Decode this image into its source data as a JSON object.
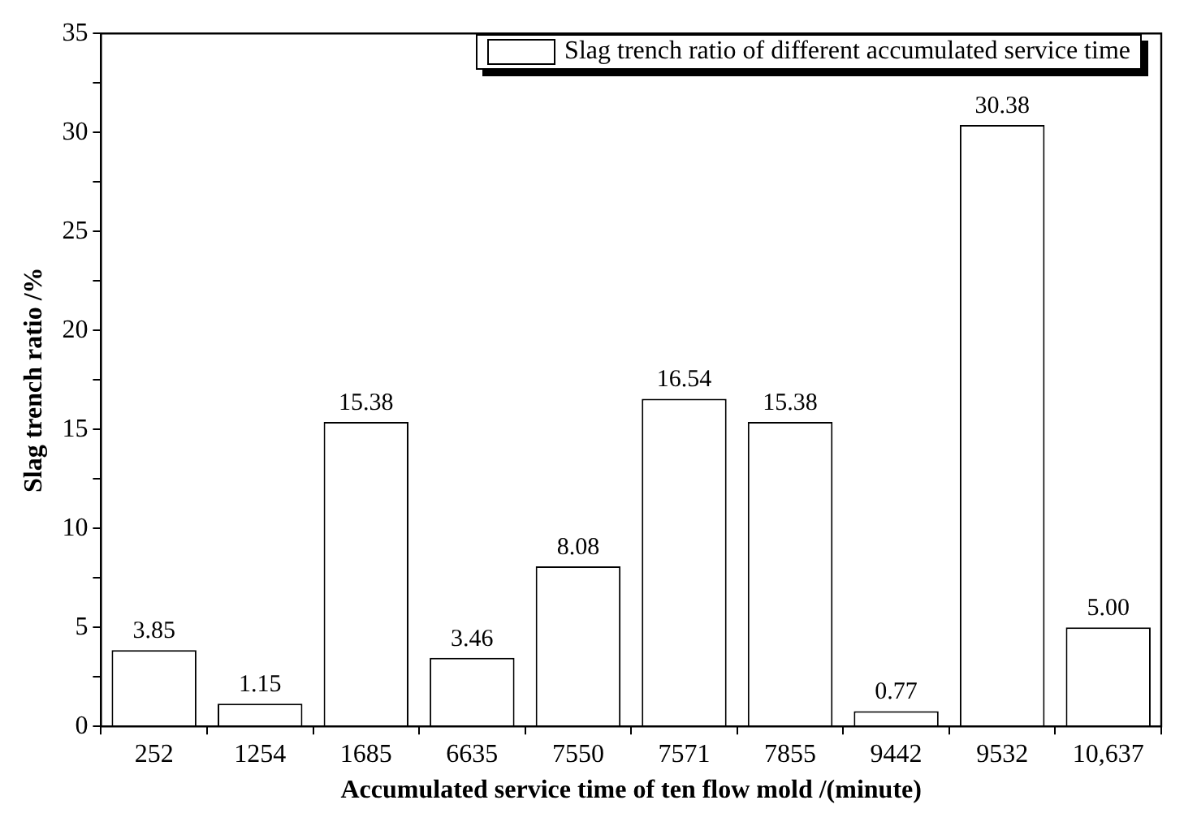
{
  "chart_data": {
    "type": "bar",
    "xlabel": "Accumulated service time of ten flow mold /(minute)",
    "ylabel": "Slag trench ratio /%",
    "categories": [
      "252",
      "1254",
      "1685",
      "6635",
      "7550",
      "7571",
      "7855",
      "9442",
      "9532",
      "10,637"
    ],
    "series": [
      {
        "name": "Slag trench ratio of different accumulated service time",
        "color": "#ffffff",
        "values": [
          3.85,
          1.15,
          15.38,
          3.46,
          8.08,
          16.54,
          15.38,
          0.77,
          30.38,
          5.0
        ]
      }
    ],
    "value_labels": [
      "3.85",
      "1.15",
      "15.38",
      "3.46",
      "8.08",
      "16.54",
      "15.38",
      "0.77",
      "30.38",
      "5.00"
    ],
    "ylim": [
      0,
      35
    ],
    "yticks": [
      0,
      {
        "value": 2.5,
        "label": null
      },
      5,
      {
        "value": 7.5,
        "label": null
      },
      10,
      {
        "value": 12.5,
        "label": null
      },
      15,
      {
        "value": 17.5,
        "label": null
      },
      20,
      {
        "value": 22.5,
        "label": null
      },
      25,
      {
        "value": 27.5,
        "label": null
      },
      30,
      {
        "value": 32.5,
        "label": null
      },
      35
    ],
    "grid": false,
    "legend": "top right"
  }
}
